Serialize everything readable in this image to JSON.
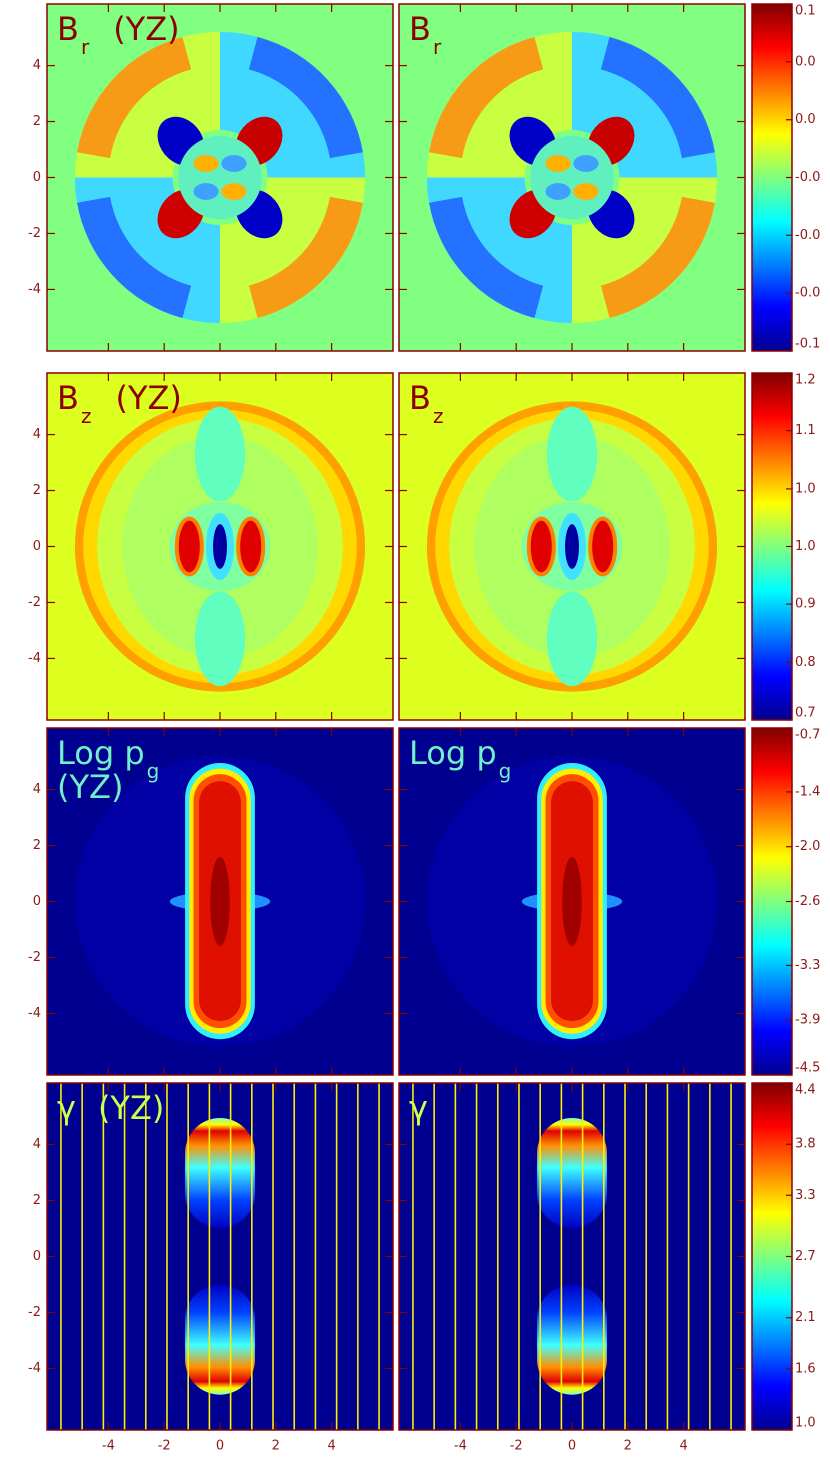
{
  "chart_data": [
    {
      "type": "heatmap",
      "title": "B",
      "title_subscript": "r",
      "title_suffix": "(YZ)",
      "title_color": "#8b0000",
      "xlim": [
        -6.2,
        6.2
      ],
      "ylim": [
        -6.2,
        6.2
      ],
      "xticks": [
        -4,
        -2,
        0,
        2,
        4
      ],
      "yticks": [
        -4,
        -2,
        0,
        2,
        4
      ],
      "clim": [
        -0.07,
        0.07
      ],
      "cticks": [
        {
          "value": 0.07,
          "label": "0.1"
        },
        {
          "value": 0.0467,
          "label": "0.0"
        },
        {
          "value": 0.0233,
          "label": "0.0"
        },
        {
          "value": 0,
          "label": "-0.0"
        },
        {
          "value": -0.0233,
          "label": "-0.0"
        },
        {
          "value": -0.0467,
          "label": "-0.0"
        },
        {
          "value": -0.07,
          "label": "-0.1"
        }
      ]
    },
    {
      "type": "heatmap",
      "title": "B",
      "title_subscript": "z",
      "title_suffix": "(YZ)",
      "title_color": "#8b0000",
      "xlim": [
        -6.2,
        6.2
      ],
      "ylim": [
        -6.2,
        6.2
      ],
      "xticks": [
        -4,
        -2,
        0,
        2,
        4
      ],
      "yticks": [
        -4,
        -2,
        0,
        2,
        4
      ],
      "clim": [
        0.7,
        1.2
      ],
      "cticks": [
        1.2,
        {
          "value": 1.117,
          "label": "1.1"
        },
        {
          "value": 1.033,
          "label": "1.0"
        },
        {
          "value": 0.95,
          "label": "1.0"
        },
        {
          "value": 0.867,
          "label": "0.9"
        },
        {
          "value": 0.783,
          "label": "0.8"
        },
        0.7
      ]
    },
    {
      "type": "heatmap",
      "title": "Log p",
      "title_subscript": "g",
      "title_suffix": "(YZ)",
      "title_color": "#70f0c8",
      "xlim": [
        -6.2,
        6.2
      ],
      "ylim": [
        -6.2,
        6.2
      ],
      "xticks": [
        -4,
        -2,
        0,
        2,
        4
      ],
      "yticks": [
        -4,
        -2,
        0,
        2,
        4
      ],
      "clim": [
        -4.5,
        -0.7
      ],
      "cticks": [
        -0.7,
        -1.4,
        {
          "value": -2,
          "label": "-2.0"
        },
        -2.6,
        -3.3,
        -3.9,
        -4.5
      ]
    },
    {
      "type": "heatmap",
      "title": "γ",
      "title_suffix": "(YZ)",
      "title_color": "#c8ff50",
      "xlim": [
        -6.2,
        6.2
      ],
      "ylim": [
        -6.2,
        6.2
      ],
      "xticks": [
        -4,
        -2,
        0,
        2,
        4
      ],
      "yticks": [
        -4,
        -2,
        0,
        2,
        4
      ],
      "clim": [
        1,
        4.4
      ],
      "cticks": [
        4.4,
        3.8,
        3.3,
        2.7,
        2.1,
        1.6,
        {
          "value": 1,
          "label": "1.0"
        }
      ]
    }
  ]
}
